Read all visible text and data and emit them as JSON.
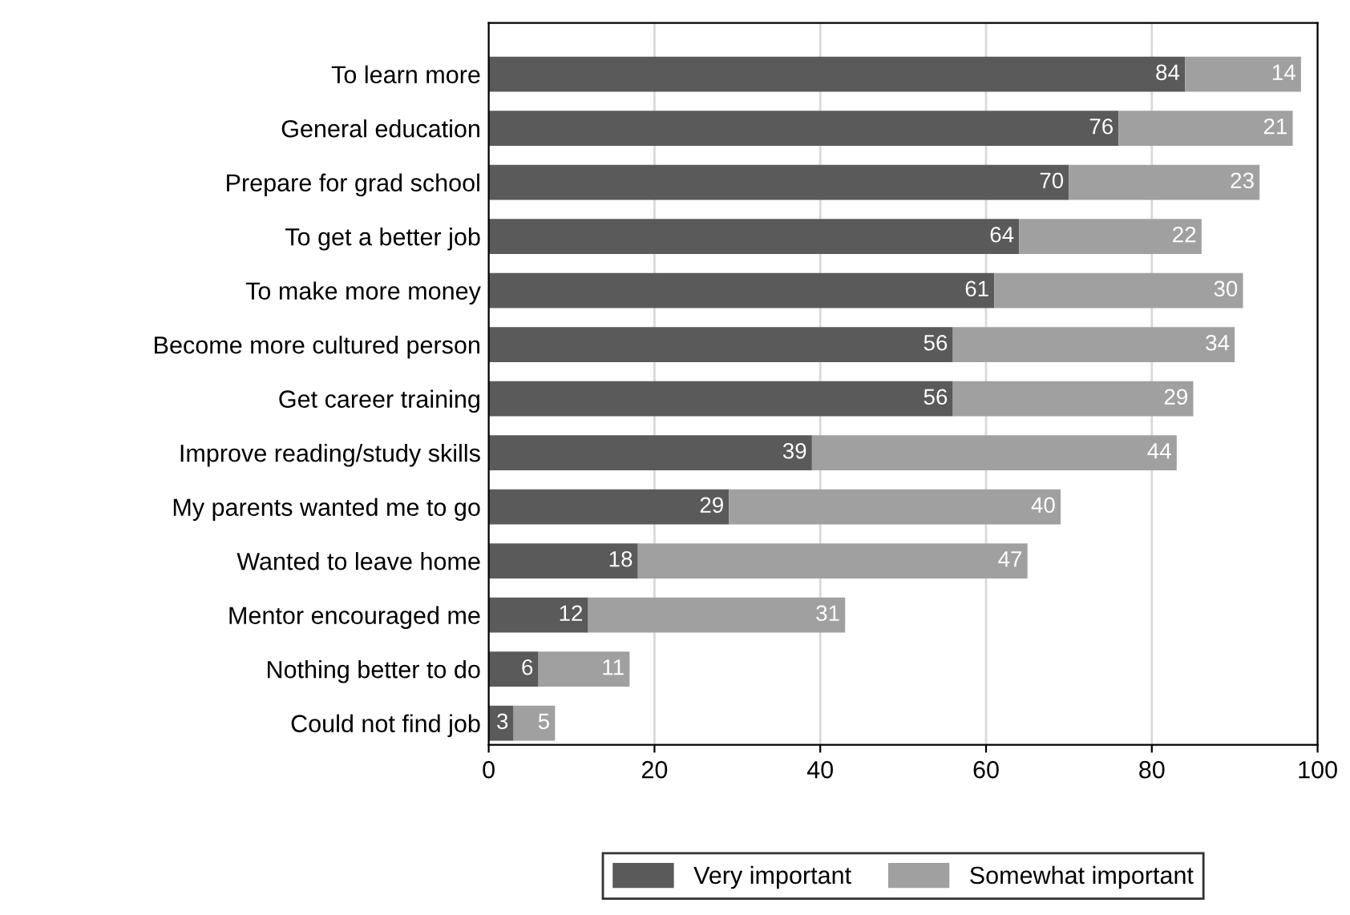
{
  "chart_data": {
    "type": "bar",
    "orientation": "horizontal",
    "stacked": true,
    "categories": [
      "To learn more",
      "General education",
      "Prepare for grad school",
      "To get a better job",
      "To make more money",
      "Become more cultured person",
      "Get career training",
      "Improve reading/study skills",
      "My parents wanted me to go",
      "Wanted to leave home",
      "Mentor encouraged me",
      "Nothing better to do",
      "Could not find job"
    ],
    "series": [
      {
        "name": "Very important",
        "color": "#5a5a5a",
        "values": [
          84,
          76,
          70,
          64,
          61,
          56,
          56,
          39,
          29,
          18,
          12,
          6,
          3
        ]
      },
      {
        "name": "Somewhat important",
        "color": "#a0a0a0",
        "values": [
          14,
          21,
          23,
          22,
          30,
          34,
          29,
          44,
          40,
          47,
          31,
          11,
          5
        ]
      }
    ],
    "xlim": [
      0,
      100
    ],
    "xticks": [
      0,
      20,
      40,
      60,
      80,
      100
    ],
    "grid": "x",
    "legend": "bottom",
    "data_labels": true
  }
}
